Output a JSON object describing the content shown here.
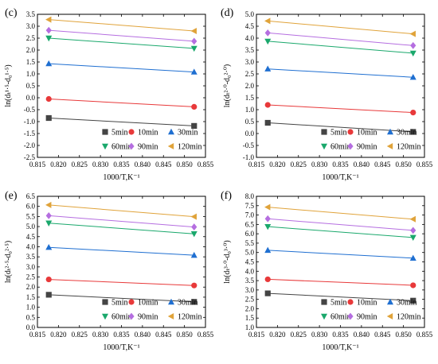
{
  "legend": {
    "labels": [
      "5min",
      "10min",
      "30min",
      "60min",
      "90min",
      "120min"
    ],
    "colors": [
      "#444444",
      "#e8393a",
      "#1f6fd1",
      "#1aa86c",
      "#b56ee0",
      "#e0a33a"
    ],
    "markers": [
      "square",
      "circle",
      "triangle-up",
      "triangle-down",
      "diamond",
      "triangle-left"
    ]
  },
  "chart_data": [
    {
      "panel_label": "(c)",
      "type": "line",
      "xlabel": "1000/T,K⁻¹",
      "ylabel": "ln(dₜ¹·⁵-d₀¹·⁵)",
      "xlim": [
        0.815,
        0.855
      ],
      "ylim": [
        -2.5,
        3.5
      ],
      "x_ticks": [
        "0.815",
        "0.820",
        "0.825",
        "0.830",
        "0.835",
        "0.840",
        "0.845",
        "0.850",
        "0.855"
      ],
      "y_ticks": [
        "-2.5",
        "-2.0",
        "-1.5",
        "-1.0",
        "-0.5",
        "0.0",
        "0.5",
        "1.0",
        "1.5",
        "2.0",
        "2.5",
        "3.0",
        "3.5"
      ],
      "x": [
        0.8177,
        0.8523
      ],
      "series": [
        {
          "name": "5min",
          "values": [
            -0.85,
            -1.18
          ]
        },
        {
          "name": "10min",
          "values": [
            -0.05,
            -0.38
          ]
        },
        {
          "name": "30min",
          "values": [
            1.43,
            1.08
          ]
        },
        {
          "name": "60min",
          "values": [
            2.5,
            2.07
          ]
        },
        {
          "name": "90min",
          "values": [
            2.83,
            2.37
          ]
        },
        {
          "name": "120min",
          "values": [
            3.28,
            2.8
          ]
        }
      ]
    },
    {
      "panel_label": "(d)",
      "type": "line",
      "xlabel": "1000/T,K⁻¹",
      "ylabel": "ln(dₜ²·⁰-d₀²·⁰)",
      "xlim": [
        0.815,
        0.855
      ],
      "ylim": [
        -1.0,
        5.0
      ],
      "x_ticks": [
        "0.815",
        "0.820",
        "0.825",
        "0.830",
        "0.835",
        "0.840",
        "0.845",
        "0.850",
        "0.855"
      ],
      "y_ticks": [
        "-1.0",
        "-0.5",
        "0.0",
        "0.5",
        "1.0",
        "1.5",
        "2.0",
        "2.5",
        "3.0",
        "3.5",
        "4.0",
        "4.5",
        "5.0"
      ],
      "x": [
        0.8177,
        0.8523
      ],
      "series": [
        {
          "name": "5min",
          "values": [
            0.45,
            0.07
          ]
        },
        {
          "name": "10min",
          "values": [
            1.2,
            0.88
          ]
        },
        {
          "name": "30min",
          "values": [
            2.71,
            2.36
          ]
        },
        {
          "name": "60min",
          "values": [
            3.87,
            3.37
          ]
        },
        {
          "name": "90min",
          "values": [
            4.22,
            3.69
          ]
        },
        {
          "name": "120min",
          "values": [
            4.72,
            4.18
          ]
        }
      ]
    },
    {
      "panel_label": "(e)",
      "type": "line",
      "xlabel": "1000/T,K⁻¹",
      "ylabel": "ln(dₜ²·⁵-d₀²·⁵)",
      "xlim": [
        0.815,
        0.855
      ],
      "ylim": [
        0.0,
        6.5
      ],
      "x_ticks": [
        "0.815",
        "0.820",
        "0.825",
        "0.830",
        "0.835",
        "0.840",
        "0.845",
        "0.850",
        "0.855"
      ],
      "y_ticks": [
        "0.0",
        "0.5",
        "1.0",
        "1.5",
        "2.0",
        "2.5",
        "3.0",
        "3.5",
        "4.0",
        "4.5",
        "5.0",
        "5.5",
        "6.0",
        "6.5"
      ],
      "x": [
        0.8177,
        0.8523
      ],
      "series": [
        {
          "name": "5min",
          "values": [
            1.62,
            1.27
          ]
        },
        {
          "name": "10min",
          "values": [
            2.38,
            2.08
          ]
        },
        {
          "name": "30min",
          "values": [
            3.97,
            3.58
          ]
        },
        {
          "name": "60min",
          "values": [
            5.17,
            4.64
          ]
        },
        {
          "name": "90min",
          "values": [
            5.54,
            4.98
          ]
        },
        {
          "name": "120min",
          "values": [
            6.07,
            5.49
          ]
        }
      ]
    },
    {
      "panel_label": "(f)",
      "type": "line",
      "xlabel": "1000/T,K⁻¹",
      "ylabel": "ln(dₜ³·⁰-d₀³·⁰)",
      "xlim": [
        0.815,
        0.855
      ],
      "ylim": [
        1.0,
        8.0
      ],
      "x_ticks": [
        "0.815",
        "0.820",
        "0.825",
        "0.830",
        "0.835",
        "0.840",
        "0.845",
        "0.850",
        "0.855"
      ],
      "y_ticks": [
        "1.0",
        "1.5",
        "2.0",
        "2.5",
        "3.0",
        "3.5",
        "4.0",
        "4.5",
        "5.0",
        "5.5",
        "6.0",
        "6.5",
        "7.0",
        "7.5",
        "8.0"
      ],
      "x": [
        0.8177,
        0.8523
      ],
      "series": [
        {
          "name": "5min",
          "values": [
            2.82,
            2.43
          ]
        },
        {
          "name": "10min",
          "values": [
            3.57,
            3.25
          ]
        },
        {
          "name": "30min",
          "values": [
            5.12,
            4.7
          ]
        },
        {
          "name": "60min",
          "values": [
            6.38,
            5.8
          ]
        },
        {
          "name": "90min",
          "values": [
            6.8,
            6.18
          ]
        },
        {
          "name": "120min",
          "values": [
            7.42,
            6.78
          ]
        }
      ]
    }
  ]
}
